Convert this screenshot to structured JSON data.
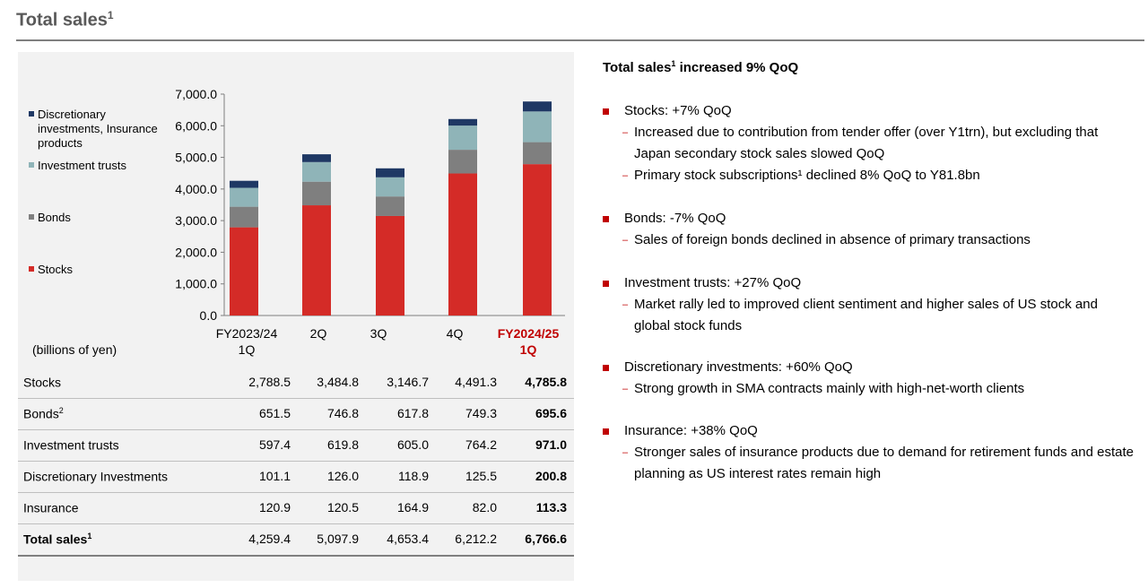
{
  "page": {
    "title": "Total sales",
    "title_sup": "1"
  },
  "chart_data": {
    "type": "bar",
    "stacked": true,
    "categories": [
      "FY2023/24 1Q",
      "2Q",
      "3Q",
      "4Q",
      "FY2024/25 1Q"
    ],
    "category_lines": [
      [
        "FY2023/24",
        "1Q"
      ],
      [
        "",
        "2Q"
      ],
      [
        "",
        "3Q"
      ],
      [
        "",
        "4Q"
      ],
      [
        "FY2024/25",
        "1Q"
      ]
    ],
    "ylim": [
      0,
      7000
    ],
    "yticks": [
      "0.0",
      "1,000.0",
      "2,000.0",
      "3,000.0",
      "4,000.0",
      "5,000.0",
      "6,000.0",
      "7,000.0"
    ],
    "grid": false,
    "legend_position": "left",
    "units": "(billions of yen)",
    "series": [
      {
        "name": "Stocks",
        "color": "#d42b27",
        "values": [
          2788.5,
          3484.8,
          3146.7,
          4491.3,
          4785.8
        ]
      },
      {
        "name": "Bonds",
        "color": "#7f7f7f",
        "values": [
          651.5,
          746.8,
          617.8,
          749.3,
          695.6
        ]
      },
      {
        "name": "Investment trusts",
        "color": "#8fb4b8",
        "values": [
          597.4,
          619.8,
          605.0,
          764.2,
          971.0
        ]
      },
      {
        "name": "Discretionary investments, Insurance products",
        "color": "#1f3864",
        "values": [
          222.0,
          246.5,
          283.8,
          207.5,
          314.1
        ]
      }
    ],
    "legend": [
      {
        "label": "Discretionary investments, Insurance products",
        "color": "#1f3864"
      },
      {
        "label": "Investment trusts",
        "color": "#8fb4b8"
      },
      {
        "label": "Bonds",
        "color": "#7f7f7f"
      },
      {
        "label": "Stocks",
        "color": "#d42b27"
      }
    ]
  },
  "table": {
    "rows": [
      {
        "label": "Stocks",
        "sup": "",
        "values": [
          "2,788.5",
          "3,484.8",
          "3,146.7",
          "4,491.3",
          "4,785.8"
        ]
      },
      {
        "label": "Bonds",
        "sup": "2",
        "values": [
          "651.5",
          "746.8",
          "617.8",
          "749.3",
          "695.6"
        ]
      },
      {
        "label": "Investment trusts",
        "sup": "",
        "values": [
          "597.4",
          "619.8",
          "605.0",
          "764.2",
          "971.0"
        ]
      },
      {
        "label": "Discretionary Investments",
        "sup": "",
        "values": [
          "101.1",
          "126.0",
          "118.9",
          "125.5",
          "200.8"
        ]
      },
      {
        "label": "Insurance",
        "sup": "",
        "values": [
          "120.9",
          "120.5",
          "164.9",
          "82.0",
          "113.3"
        ]
      },
      {
        "label": "Total sales",
        "sup": "1",
        "values": [
          "4,259.4",
          "5,097.9",
          "4,653.4",
          "6,212.2",
          "6,766.6"
        ]
      }
    ]
  },
  "summary": {
    "title": "Total sales",
    "title_sup": "1",
    "title_rest": " increased 9% QoQ",
    "bullets": [
      {
        "head": "Stocks: +7% QoQ",
        "subs": [
          "Increased due to contribution from tender offer (over Y1trn), but excluding that Japan secondary stock sales slowed QoQ",
          "Primary stock subscriptions¹ declined 8% QoQ to Y81.8bn"
        ]
      },
      {
        "head": "Bonds: -7% QoQ",
        "subs": [
          "Sales of foreign bonds declined in absence of primary transactions"
        ]
      },
      {
        "head": "Investment trusts: +27% QoQ",
        "subs": [
          "Market rally led to improved client sentiment and higher sales of US stock and global stock funds"
        ]
      },
      {
        "head": "Discretionary investments: +60% QoQ",
        "subs": [
          "Strong growth in SMA contracts mainly with high-net-worth clients"
        ]
      },
      {
        "head": "Insurance: +38% QoQ",
        "subs": [
          "Stronger sales of insurance products due to demand for retirement funds and estate planning as US interest rates remain high"
        ]
      }
    ]
  }
}
